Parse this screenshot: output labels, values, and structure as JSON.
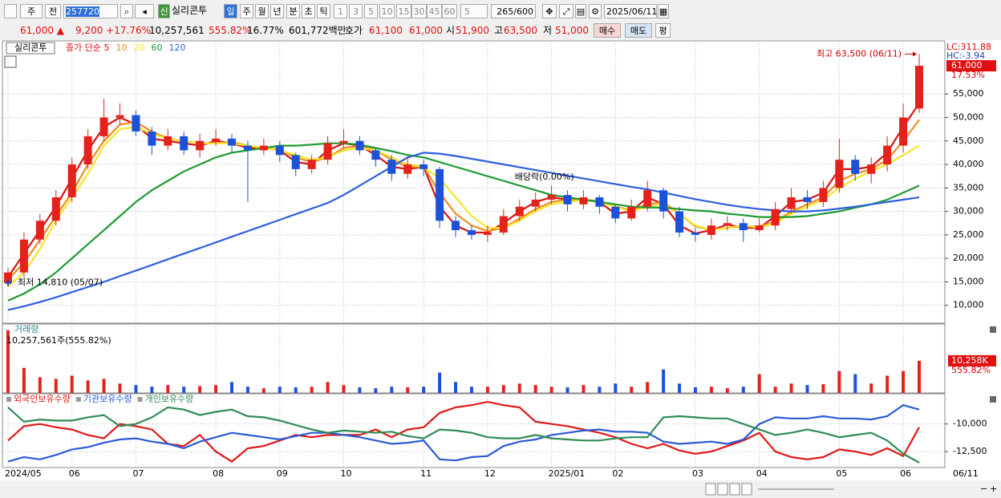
{
  "toolbar": {
    "market": "주",
    "mode": "전",
    "code": "257720",
    "badge": "신",
    "name": "실리콘투",
    "periods": [
      "일",
      "주",
      "월",
      "년",
      "분",
      "초",
      "틱"
    ],
    "intervals": [
      "1",
      "3",
      "5",
      "10",
      "15",
      "30",
      "45",
      "60"
    ],
    "count": "5",
    "range": "265/600",
    "date": "2025/06/11"
  },
  "quote": {
    "price": "61,000 ▲",
    "change": "9,200 +17.76%",
    "volume": "10,257,561",
    "volume_ratio": "555.82%",
    "turnover": "16.77%",
    "amount": "601,772백만",
    "hoga_label": "호가",
    "ask": "61,100",
    "bid": "61,000",
    "open_label": "시",
    "open": "51,900",
    "high_label": "고",
    "high": "63,500",
    "low_label": "저",
    "low": "51,000",
    "buy": "매수",
    "sell": "매도",
    "eval": "평"
  },
  "chart_data": [
    {
      "type": "candlestick",
      "name": "실리콘투",
      "categories": [
        "2024/05",
        null,
        null,
        null,
        "06",
        null,
        null,
        null,
        "07",
        null,
        null,
        null,
        null,
        "08",
        null,
        null,
        null,
        "09",
        null,
        null,
        null,
        "10",
        null,
        null,
        null,
        null,
        "11",
        null,
        null,
        null,
        "12",
        null,
        null,
        null,
        "2025/01",
        null,
        null,
        null,
        "02",
        null,
        null,
        null,
        null,
        "03",
        null,
        null,
        null,
        "04",
        null,
        null,
        null,
        null,
        "05",
        null,
        null,
        null,
        "06",
        null
      ],
      "last_date": "06/11",
      "open": [
        14810,
        17000,
        24000,
        28000,
        33000,
        40000,
        46000,
        50000,
        50500,
        47000,
        44000,
        46000,
        43000,
        45000,
        45500,
        44000,
        43000,
        44000,
        42000,
        39000,
        41000,
        44500,
        45000,
        43000,
        41000,
        38000,
        40000,
        39000,
        28000,
        26000,
        25000,
        25500,
        29000,
        31000,
        32500,
        33500,
        31500,
        33000,
        31000,
        28500,
        31000,
        34500,
        30000,
        25500,
        25000,
        27000,
        27500,
        26000,
        27000,
        30500,
        33000,
        32000,
        35000,
        41000,
        38000,
        40000,
        44000,
        51900
      ],
      "high": [
        18000,
        25500,
        29500,
        34500,
        41500,
        47500,
        54000,
        53000,
        51500,
        48000,
        47500,
        47000,
        46500,
        47500,
        46500,
        45000,
        45500,
        45000,
        42500,
        42000,
        46000,
        47500,
        46000,
        43500,
        42000,
        41500,
        41000,
        39500,
        29000,
        27000,
        27000,
        30500,
        32500,
        34000,
        35500,
        34500,
        34500,
        33500,
        31500,
        32500,
        36500,
        35000,
        31000,
        26500,
        28500,
        29000,
        28500,
        28500,
        32000,
        35000,
        34500,
        36500,
        45500,
        42000,
        41500,
        46000,
        53000,
        63500
      ],
      "low": [
        14810,
        16000,
        23000,
        27000,
        32000,
        39000,
        45000,
        48500,
        46000,
        42000,
        43000,
        42000,
        41500,
        44000,
        42500,
        32000,
        42000,
        40500,
        37500,
        38000,
        40000,
        43500,
        42000,
        39500,
        36500,
        37000,
        37500,
        26500,
        24500,
        24000,
        23500,
        25000,
        28000,
        30000,
        31500,
        30000,
        30500,
        29500,
        27500,
        28000,
        30000,
        28500,
        24500,
        23500,
        24000,
        26000,
        23500,
        25500,
        26000,
        29500,
        30500,
        31000,
        34000,
        36500,
        36000,
        38500,
        42500,
        51000
      ],
      "close": [
        17000,
        24000,
        28000,
        33000,
        40000,
        46000,
        50000,
        50500,
        47000,
        44000,
        46000,
        43000,
        45000,
        45500,
        44000,
        43000,
        44000,
        42000,
        39000,
        41000,
        44500,
        45000,
        43000,
        41000,
        38000,
        40000,
        39000,
        28000,
        26000,
        25000,
        25500,
        29000,
        31000,
        32500,
        33500,
        31500,
        33000,
        31000,
        28500,
        31000,
        34500,
        30000,
        25500,
        25000,
        27000,
        27500,
        26000,
        27000,
        30500,
        33000,
        32000,
        35000,
        41000,
        38000,
        40000,
        44000,
        50000,
        61000
      ],
      "up_color": "#e3221c",
      "down_color": "#1c52d8",
      "series": [
        {
          "name": "종가 단순 5",
          "color": "#e01010",
          "values": [
            16000,
            21000,
            26000,
            31000,
            37000,
            43000,
            48000,
            50000,
            48500,
            45500,
            45000,
            44500,
            44000,
            45000,
            44500,
            43500,
            43500,
            43000,
            40500,
            40000,
            43000,
            44500,
            44000,
            42000,
            39500,
            39000,
            39500,
            31000,
            27000,
            25500,
            25500,
            27500,
            30000,
            32000,
            33000,
            32500,
            32500,
            32000,
            29500,
            30000,
            33000,
            31500,
            27000,
            25300,
            26000,
            27200,
            26500,
            26500,
            29000,
            32000,
            32500,
            34000,
            39000,
            39000,
            39500,
            42500,
            48000,
            53000
          ]
        },
        {
          "name": "10",
          "color": "#f08c1e",
          "values": [
            15500,
            19000,
            24000,
            29000,
            34000,
            40000,
            45000,
            48500,
            49000,
            47000,
            45500,
            45000,
            44500,
            44500,
            44800,
            44000,
            43500,
            43200,
            41500,
            40500,
            41500,
            43500,
            44000,
            43000,
            41000,
            39500,
            39500,
            34000,
            29500,
            27000,
            25800,
            26500,
            28500,
            30500,
            32000,
            32500,
            32500,
            32200,
            31000,
            30300,
            31500,
            32000,
            29500,
            26800,
            26000,
            26500,
            26800,
            26800,
            27800,
            30000,
            31500,
            33000,
            36500,
            38000,
            39000,
            41000,
            45000,
            49500
          ]
        },
        {
          "name": "20",
          "color": "#f5e62a",
          "values": [
            14000,
            17000,
            22000,
            28000,
            33000,
            38000,
            44000,
            47500,
            48000,
            46500,
            45500,
            45000,
            44500,
            44500,
            44500,
            44000,
            43500,
            43000,
            42000,
            41000,
            41500,
            43000,
            43500,
            43000,
            41500,
            40000,
            39500,
            37000,
            33000,
            29000,
            26500,
            26500,
            28000,
            30000,
            31500,
            32000,
            32500,
            32000,
            31000,
            30000,
            31000,
            31500,
            29500,
            27000,
            26000,
            26500,
            27000,
            26500,
            27500,
            29500,
            31000,
            32500,
            35000,
            37000,
            38500,
            40000,
            42000,
            44000
          ]
        },
        {
          "name": "60",
          "color": "#1e9a32",
          "values": [
            11000,
            12500,
            14500,
            17000,
            20000,
            23000,
            26000,
            29000,
            32000,
            34500,
            36500,
            38500,
            40000,
            41500,
            42500,
            43000,
            43500,
            44000,
            44000,
            44200,
            44500,
            44500,
            44200,
            43500,
            42800,
            42000,
            41500,
            40500,
            39500,
            38500,
            37500,
            36500,
            35500,
            34500,
            33500,
            33000,
            32500,
            32000,
            31500,
            31000,
            30800,
            30800,
            30500,
            30200,
            30000,
            29500,
            29200,
            28800,
            28800,
            28800,
            29000,
            29500,
            30000,
            30800,
            31500,
            32500,
            34000,
            35500
          ]
        },
        {
          "name": "120",
          "color": "#2d5fe0",
          "values": [
            9000,
            9800,
            10700,
            11700,
            12800,
            13900,
            15000,
            16200,
            17400,
            18600,
            19800,
            21000,
            22200,
            23400,
            24600,
            25800,
            27000,
            28200,
            29400,
            30600,
            31800,
            33500,
            35500,
            37500,
            39500,
            41500,
            42500,
            42300,
            41800,
            41200,
            40600,
            40000,
            39400,
            38800,
            38200,
            37600,
            37000,
            36400,
            35800,
            35200,
            34700,
            34000,
            33300,
            32600,
            32000,
            31400,
            30900,
            30500,
            30200,
            30000,
            30000,
            30200,
            30600,
            31000,
            31500,
            32000,
            32500,
            33000
          ]
        }
      ],
      "ylim": [
        6200,
        66300
      ],
      "yticks": [
        {
          "value": 10000,
          "label": "10,000"
        },
        {
          "value": 15000,
          "label": "15,000"
        },
        {
          "value": 20000,
          "label": "20,000"
        },
        {
          "value": 25000,
          "label": "25,000"
        },
        {
          "value": 30000,
          "label": "30,000"
        },
        {
          "value": 35000,
          "label": "35,000"
        },
        {
          "value": 40000,
          "label": "40,000"
        },
        {
          "value": 45000,
          "label": "45,000"
        },
        {
          "value": 50000,
          "label": "50,000"
        },
        {
          "value": 55000,
          "label": "55,000"
        }
      ],
      "grid": true,
      "annotations": {
        "high": "최고 63,500 (06/11)",
        "low": "최저 14,810 (05/07)",
        "dividend": "배당락(0.00%)"
      },
      "right_labels": {
        "lc": "LC:311.88",
        "hc": "HC:-3.94",
        "price": "61,000",
        "change": "17.53%"
      }
    },
    {
      "type": "bar",
      "title": "거래량",
      "subtitle": "10,257,561주(555.82%)",
      "values": [
        20000,
        8000,
        5000,
        4500,
        5500,
        4000,
        4500,
        3000,
        2500,
        2000,
        2500,
        2000,
        2200,
        2500,
        3500,
        2000,
        1500,
        2000,
        1800,
        2000,
        3500,
        2500,
        1800,
        1500,
        2000,
        1800,
        2000,
        6500,
        3500,
        2000,
        2000,
        2500,
        3000,
        2500,
        2000,
        1800,
        2500,
        2000,
        3000,
        2000,
        3500,
        7500,
        3000,
        1800,
        2000,
        1500,
        2000,
        6000,
        2000,
        3000,
        2500,
        2800,
        7000,
        6000,
        3000,
        5500,
        7000,
        10258
      ],
      "last_value_label": "10,258K",
      "last_ratio": "555.82%",
      "ylim": [
        0,
        22000
      ]
    },
    {
      "type": "line",
      "series": [
        {
          "name": "외국인보유수량",
          "color": "#e01818",
          "values": [
            -11500,
            -10200,
            -10000,
            -10300,
            -10500,
            -11000,
            -11300,
            -10000,
            -10200,
            -10500,
            -11800,
            -12000,
            -11000,
            -12500,
            -13400,
            -12200,
            -12000,
            -11500,
            -11000,
            -11200,
            -11000,
            -11000,
            -11000,
            -10500,
            -11200,
            -10500,
            -10300,
            -9000,
            -8500,
            -8300,
            -8000,
            -8300,
            -8500,
            -9800,
            -10000,
            -10200,
            -10500,
            -10800,
            -11200,
            -11800,
            -12200,
            -11800,
            -12400,
            -12700,
            -12500,
            -12000,
            -11500,
            -10800,
            -12500,
            -13000,
            -13200,
            -13000,
            -12300,
            -12500,
            -12800,
            -12200,
            -12900,
            -10300
          ]
        },
        {
          "name": "기관보유수량",
          "color": "#2a5ad8",
          "values": [
            -13400,
            -13000,
            -13200,
            -12800,
            -12300,
            -12100,
            -11700,
            -11400,
            -11300,
            -11600,
            -11800,
            -12200,
            -11600,
            -11200,
            -10800,
            -11000,
            -11200,
            -11400,
            -11100,
            -10800,
            -10800,
            -11000,
            -11200,
            -11500,
            -11800,
            -11700,
            -11500,
            -13200,
            -13300,
            -13000,
            -12900,
            -12000,
            -11600,
            -11400,
            -11000,
            -10800,
            -10600,
            -10500,
            -10700,
            -10700,
            -10800,
            -11600,
            -11800,
            -11700,
            -11600,
            -11800,
            -11400,
            -10000,
            -9400,
            -9500,
            -9500,
            -9300,
            -9500,
            -9500,
            -9600,
            -9300,
            -8300,
            -8700
          ]
        },
        {
          "name": "개인보유수량",
          "color": "#2e8b57",
          "values": [
            -8500,
            -9800,
            -9600,
            -9700,
            -9700,
            -9400,
            -9200,
            -10200,
            -10000,
            -9400,
            -8500,
            -8700,
            -9200,
            -8900,
            -8700,
            -9300,
            -9400,
            -9700,
            -10100,
            -10500,
            -10800,
            -10600,
            -10700,
            -10800,
            -10700,
            -11100,
            -11300,
            -10500,
            -10600,
            -10800,
            -11200,
            -11300,
            -11300,
            -11000,
            -11300,
            -11400,
            -11500,
            -11500,
            -11300,
            -11200,
            -11200,
            -9400,
            -9300,
            -9400,
            -9500,
            -9500,
            -10000,
            -10500,
            -11000,
            -10800,
            -10500,
            -10800,
            -11200,
            -11000,
            -10800,
            -11500,
            -12700,
            -13500
          ]
        }
      ],
      "ylim": [
        -13940,
        -7270
      ],
      "yticks": [
        {
          "value": -10000,
          "label": "-10,000"
        },
        {
          "value": -12500,
          "label": "-12,500"
        }
      ],
      "grid": true
    }
  ]
}
